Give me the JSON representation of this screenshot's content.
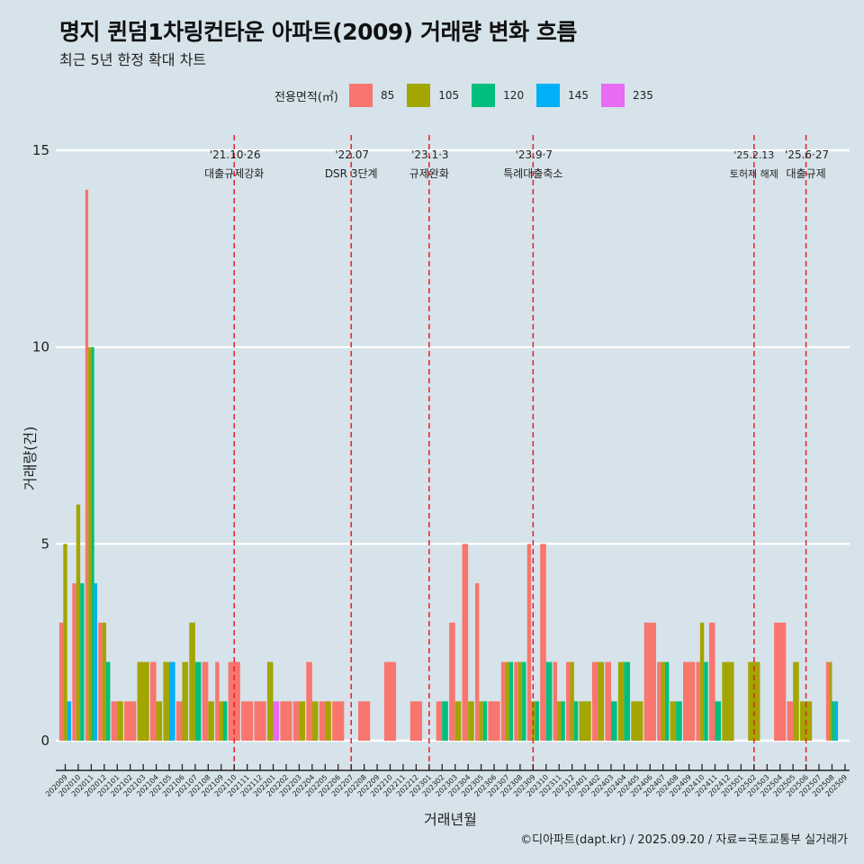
{
  "header": {
    "title": "명지 퀸덤1차링컨타운 아파트(2009) 거래량 변화 흐름",
    "subtitle": "최근 5년 한정 확대 차트"
  },
  "legend": {
    "title": "전용면적(㎡)",
    "items": [
      {
        "label": "85",
        "color": "#f8766d"
      },
      {
        "label": "105",
        "color": "#a3a500"
      },
      {
        "label": "120",
        "color": "#00bf7d"
      },
      {
        "label": "145",
        "color": "#00b0f6"
      },
      {
        "label": "235",
        "color": "#e76bf3"
      }
    ]
  },
  "caption": "©디아파트(dapt.kr) / 2025.09.20 / 자료=국토교통부 실거래가",
  "chart_data": {
    "type": "bar",
    "title": "명지 퀸덤1차링컨타운 아파트(2009) 거래량 변화 흐름",
    "subtitle": "최근 5년 한정 확대 차트",
    "xlabel": "거래년월",
    "ylabel": "거래량(건)",
    "ylim": [
      0,
      15
    ],
    "yticks": [
      0,
      5,
      10,
      15
    ],
    "grid": true,
    "legend_position": "top",
    "legend_title": "전용면적(㎡)",
    "series_names": [
      "85",
      "105",
      "120",
      "145",
      "235"
    ],
    "categories": [
      "202009",
      "202010",
      "202011",
      "202012",
      "202101",
      "202102",
      "202103",
      "202104",
      "202105",
      "202106",
      "202107",
      "202108",
      "202109",
      "202110",
      "202111",
      "202112",
      "202201",
      "202202",
      "202203",
      "202204",
      "202205",
      "202206",
      "202207",
      "202208",
      "202209",
      "202210",
      "202211",
      "202212",
      "202301",
      "202302",
      "202303",
      "202304",
      "202305",
      "202306",
      "202307",
      "202308",
      "202309",
      "202310",
      "202311",
      "202312",
      "202401",
      "202402",
      "202403",
      "202404",
      "202405",
      "202406",
      "202407",
      "202408",
      "202409",
      "202410",
      "202411",
      "202412",
      "202501",
      "202502",
      "202503",
      "202504",
      "202505",
      "202506",
      "202507",
      "202508",
      "202509"
    ],
    "data": [
      {
        "month": "202009",
        "values": {
          "85": 3,
          "105": 5,
          "145": 1
        }
      },
      {
        "month": "202010",
        "values": {
          "85": 4,
          "105": 6,
          "120": 4
        }
      },
      {
        "month": "202011",
        "values": {
          "85": 14,
          "105": 10,
          "120": 10,
          "145": 4
        }
      },
      {
        "month": "202012",
        "values": {
          "85": 3,
          "105": 3,
          "120": 2
        }
      },
      {
        "month": "202101",
        "values": {
          "85": 1,
          "105": 1
        }
      },
      {
        "month": "202102",
        "values": {
          "85": 1
        }
      },
      {
        "month": "202103",
        "values": {
          "105": 2
        }
      },
      {
        "month": "202104",
        "values": {
          "85": 2,
          "105": 1
        }
      },
      {
        "month": "202105",
        "values": {
          "105": 2,
          "145": 2
        }
      },
      {
        "month": "202106",
        "values": {
          "85": 1,
          "105": 2
        }
      },
      {
        "month": "202107",
        "values": {
          "105": 3,
          "120": 2
        }
      },
      {
        "month": "202108",
        "values": {
          "85": 2,
          "105": 1
        }
      },
      {
        "month": "202109",
        "values": {
          "85": 2,
          "105": 1,
          "120": 1
        }
      },
      {
        "month": "202110",
        "values": {
          "85": 2
        }
      },
      {
        "month": "202111",
        "values": {
          "85": 1
        }
      },
      {
        "month": "202112",
        "values": {
          "85": 1
        }
      },
      {
        "month": "202201",
        "values": {
          "105": 2,
          "235": 1
        }
      },
      {
        "month": "202202",
        "values": {
          "85": 1
        }
      },
      {
        "month": "202203",
        "values": {
          "85": 1,
          "105": 1
        }
      },
      {
        "month": "202204",
        "values": {
          "85": 2,
          "105": 1
        }
      },
      {
        "month": "202205",
        "values": {
          "85": 1,
          "105": 1
        }
      },
      {
        "month": "202206",
        "values": {
          "85": 1
        }
      },
      {
        "month": "202207",
        "values": {}
      },
      {
        "month": "202208",
        "values": {
          "85": 1
        }
      },
      {
        "month": "202209",
        "values": {}
      },
      {
        "month": "202210",
        "values": {
          "85": 2
        }
      },
      {
        "month": "202211",
        "values": {}
      },
      {
        "month": "202212",
        "values": {
          "85": 1
        }
      },
      {
        "month": "202301",
        "values": {}
      },
      {
        "month": "202302",
        "values": {
          "85": 1,
          "120": 1
        }
      },
      {
        "month": "202303",
        "values": {
          "85": 3,
          "105": 1
        }
      },
      {
        "month": "202304",
        "values": {
          "85": 5,
          "105": 1
        }
      },
      {
        "month": "202305",
        "values": {
          "85": 4,
          "105": 1,
          "120": 1
        }
      },
      {
        "month": "202306",
        "values": {
          "85": 1
        }
      },
      {
        "month": "202307",
        "values": {
          "85": 2,
          "105": 2,
          "120": 2
        }
      },
      {
        "month": "202308",
        "values": {
          "85": 2,
          "105": 2,
          "120": 2
        }
      },
      {
        "month": "202309",
        "values": {
          "85": 5,
          "105": 1,
          "120": 1
        }
      },
      {
        "month": "202310",
        "values": {
          "85": 5,
          "120": 2
        }
      },
      {
        "month": "202311",
        "values": {
          "85": 2,
          "105": 1,
          "120": 1
        }
      },
      {
        "month": "202312",
        "values": {
          "85": 2,
          "105": 2,
          "120": 1
        }
      },
      {
        "month": "202401",
        "values": {
          "105": 1
        }
      },
      {
        "month": "202402",
        "values": {
          "85": 2,
          "105": 2
        }
      },
      {
        "month": "202403",
        "values": {
          "85": 2,
          "120": 1
        }
      },
      {
        "month": "202404",
        "values": {
          "105": 2,
          "120": 2
        }
      },
      {
        "month": "202405",
        "values": {
          "105": 1
        }
      },
      {
        "month": "202406",
        "values": {
          "85": 3
        }
      },
      {
        "month": "202407",
        "values": {
          "85": 2,
          "105": 2,
          "120": 2
        }
      },
      {
        "month": "202408",
        "values": {
          "105": 1,
          "120": 1
        }
      },
      {
        "month": "202409",
        "values": {
          "85": 2
        }
      },
      {
        "month": "202410",
        "values": {
          "85": 2,
          "105": 3,
          "120": 2
        }
      },
      {
        "month": "202411",
        "values": {
          "85": 3,
          "120": 1
        }
      },
      {
        "month": "202412",
        "values": {
          "105": 2
        }
      },
      {
        "month": "202501",
        "values": {}
      },
      {
        "month": "202502",
        "values": {
          "105": 2
        }
      },
      {
        "month": "202503",
        "values": {}
      },
      {
        "month": "202504",
        "values": {
          "85": 3
        }
      },
      {
        "month": "202505",
        "values": {
          "85": 1,
          "105": 2
        }
      },
      {
        "month": "202506",
        "values": {
          "105": 1
        }
      },
      {
        "month": "202507",
        "values": {}
      },
      {
        "month": "202508",
        "values": {
          "85": 2,
          "105": 2,
          "120": 1,
          "145": 1
        }
      },
      {
        "month": "202509",
        "values": {}
      }
    ],
    "annotations": [
      {
        "month": "202110",
        "date": "'21.10·26",
        "label": "대출규제강화"
      },
      {
        "month": "202207",
        "date": "'22.07",
        "label": "DSR 3단계"
      },
      {
        "month": "202301",
        "date": "'23.1·3",
        "label": "규제완화"
      },
      {
        "month": "202309",
        "date": "'23.9·7",
        "label": "특례대출축소"
      },
      {
        "month": "202502",
        "date": "'25.2.13",
        "label": "토허제 해제"
      },
      {
        "month": "202506",
        "date": "'25.6·27",
        "label": "대출규제"
      }
    ]
  }
}
